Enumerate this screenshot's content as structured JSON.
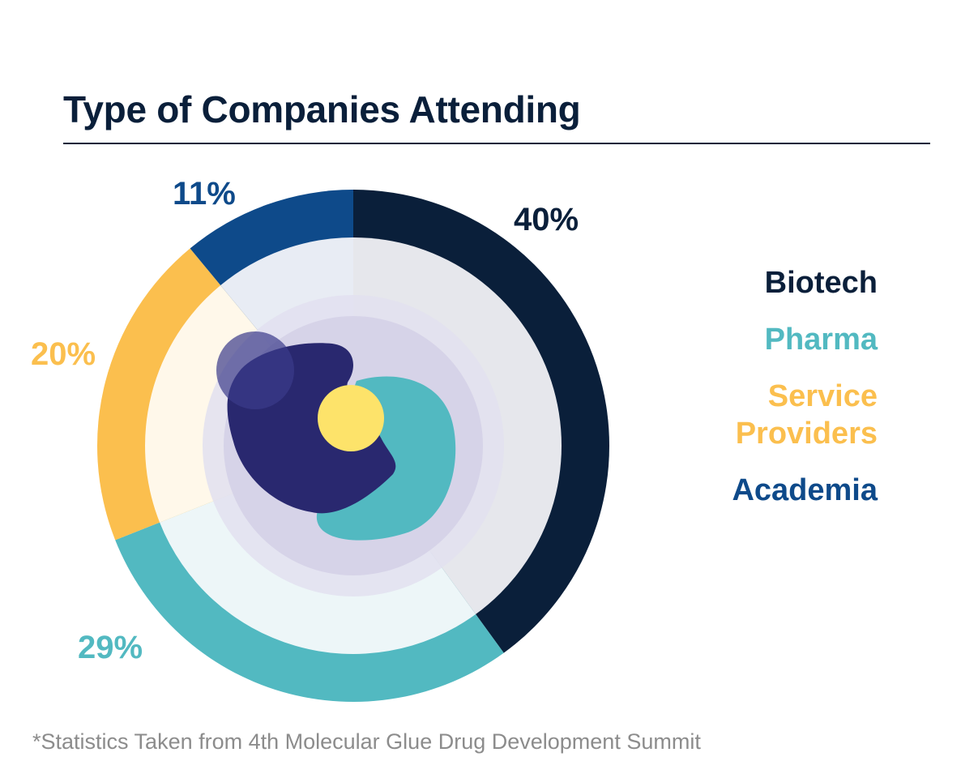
{
  "title": "Type of Companies Attending",
  "footnote": "*Statistics Taken from 4th Molecular Glue Drug Development Summit",
  "chart_data": {
    "type": "pie",
    "title": "Type of Companies Attending",
    "legend_position": "right",
    "slices": [
      {
        "name": "Biotech",
        "value": 40,
        "label": "40%",
        "color": "#0a1f3a",
        "inner_color": "#e6e7ec",
        "name_lines": [
          "Biotech"
        ]
      },
      {
        "name": "Pharma",
        "value": 29,
        "label": "29%",
        "color": "#52b9c1",
        "inner_color": "#edf6f8",
        "name_lines": [
          "Pharma"
        ]
      },
      {
        "name": "Service Providers",
        "value": 20,
        "label": "20%",
        "color": "#fbbf4e",
        "inner_color": "#fff8ea",
        "name_lines": [
          "Service",
          "Providers"
        ]
      },
      {
        "name": "Academia",
        "value": 11,
        "label": "11%",
        "color": "#0e4a8a",
        "inner_color": "#e8ecf4",
        "name_lines": [
          "Academia"
        ]
      }
    ]
  }
}
